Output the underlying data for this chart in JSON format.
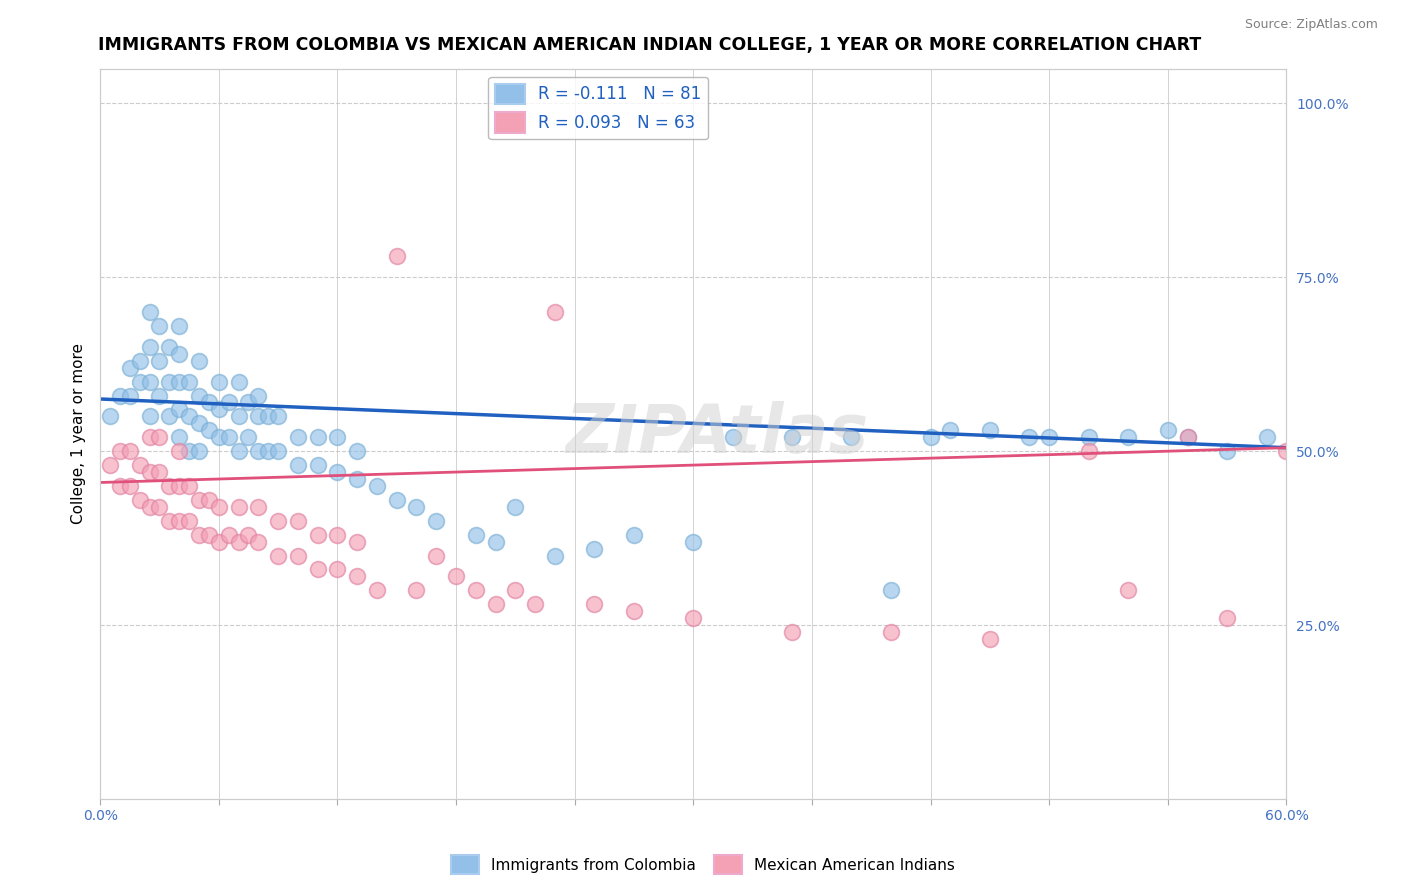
{
  "title": "IMMIGRANTS FROM COLOMBIA VS MEXICAN AMERICAN INDIAN COLLEGE, 1 YEAR OR MORE CORRELATION CHART",
  "source": "Source: ZipAtlas.com",
  "ylabel": "College, 1 year or more",
  "xlim": [
    0.0,
    0.6
  ],
  "ylim": [
    0.0,
    1.05
  ],
  "grid_color": "#cccccc",
  "background_color": "#ffffff",
  "blue_color": "#92C0E8",
  "pink_color": "#F4A0B5",
  "blue_edge_color": "#7aafd4",
  "pink_edge_color": "#e080a0",
  "blue_line_color": "#2060C0",
  "pink_line_color": "#E0507A",
  "R_blue": -0.111,
  "N_blue": 81,
  "R_pink": 0.093,
  "N_pink": 63,
  "legend_label_blue": "Immigrants from Colombia",
  "legend_label_pink": "Mexican American Indians",
  "watermark": "ZIPAtlas",
  "title_fontsize": 12.5,
  "label_fontsize": 11,
  "tick_fontsize": 10,
  "blue_scatter_x": [
    0.005,
    0.01,
    0.015,
    0.015,
    0.02,
    0.02,
    0.025,
    0.025,
    0.025,
    0.025,
    0.03,
    0.03,
    0.03,
    0.035,
    0.035,
    0.035,
    0.04,
    0.04,
    0.04,
    0.04,
    0.04,
    0.045,
    0.045,
    0.045,
    0.05,
    0.05,
    0.05,
    0.05,
    0.055,
    0.055,
    0.06,
    0.06,
    0.06,
    0.065,
    0.065,
    0.07,
    0.07,
    0.07,
    0.075,
    0.075,
    0.08,
    0.08,
    0.08,
    0.085,
    0.085,
    0.09,
    0.09,
    0.1,
    0.1,
    0.11,
    0.11,
    0.12,
    0.12,
    0.13,
    0.13,
    0.14,
    0.15,
    0.16,
    0.17,
    0.19,
    0.2,
    0.21,
    0.23,
    0.25,
    0.27,
    0.3,
    0.32,
    0.35,
    0.38,
    0.4,
    0.42,
    0.43,
    0.45,
    0.47,
    0.48,
    0.5,
    0.52,
    0.54,
    0.55,
    0.57,
    0.59
  ],
  "blue_scatter_y": [
    0.55,
    0.58,
    0.62,
    0.58,
    0.6,
    0.63,
    0.55,
    0.6,
    0.65,
    0.7,
    0.58,
    0.63,
    0.68,
    0.55,
    0.6,
    0.65,
    0.52,
    0.56,
    0.6,
    0.64,
    0.68,
    0.5,
    0.55,
    0.6,
    0.5,
    0.54,
    0.58,
    0.63,
    0.53,
    0.57,
    0.52,
    0.56,
    0.6,
    0.52,
    0.57,
    0.5,
    0.55,
    0.6,
    0.52,
    0.57,
    0.5,
    0.55,
    0.58,
    0.5,
    0.55,
    0.5,
    0.55,
    0.48,
    0.52,
    0.48,
    0.52,
    0.47,
    0.52,
    0.46,
    0.5,
    0.45,
    0.43,
    0.42,
    0.4,
    0.38,
    0.37,
    0.42,
    0.35,
    0.36,
    0.38,
    0.37,
    0.52,
    0.52,
    0.52,
    0.3,
    0.52,
    0.53,
    0.53,
    0.52,
    0.52,
    0.52,
    0.52,
    0.53,
    0.52,
    0.5,
    0.52
  ],
  "pink_scatter_x": [
    0.005,
    0.01,
    0.01,
    0.015,
    0.015,
    0.02,
    0.02,
    0.025,
    0.025,
    0.025,
    0.03,
    0.03,
    0.03,
    0.035,
    0.035,
    0.04,
    0.04,
    0.04,
    0.045,
    0.045,
    0.05,
    0.05,
    0.055,
    0.055,
    0.06,
    0.06,
    0.065,
    0.07,
    0.07,
    0.075,
    0.08,
    0.08,
    0.09,
    0.09,
    0.1,
    0.1,
    0.11,
    0.11,
    0.12,
    0.12,
    0.13,
    0.13,
    0.14,
    0.15,
    0.16,
    0.17,
    0.18,
    0.19,
    0.2,
    0.21,
    0.22,
    0.23,
    0.25,
    0.27,
    0.3,
    0.35,
    0.4,
    0.45,
    0.5,
    0.52,
    0.55,
    0.57,
    0.6
  ],
  "pink_scatter_y": [
    0.48,
    0.45,
    0.5,
    0.45,
    0.5,
    0.43,
    0.48,
    0.42,
    0.47,
    0.52,
    0.42,
    0.47,
    0.52,
    0.4,
    0.45,
    0.4,
    0.45,
    0.5,
    0.4,
    0.45,
    0.38,
    0.43,
    0.38,
    0.43,
    0.37,
    0.42,
    0.38,
    0.37,
    0.42,
    0.38,
    0.37,
    0.42,
    0.35,
    0.4,
    0.35,
    0.4,
    0.33,
    0.38,
    0.33,
    0.38,
    0.32,
    0.37,
    0.3,
    0.78,
    0.3,
    0.35,
    0.32,
    0.3,
    0.28,
    0.3,
    0.28,
    0.7,
    0.28,
    0.27,
    0.26,
    0.24,
    0.24,
    0.23,
    0.5,
    0.3,
    0.52,
    0.26,
    0.5
  ],
  "blue_line_x_start": 0.0,
  "blue_line_x_end": 0.6,
  "blue_line_y_start": 0.575,
  "blue_line_y_end": 0.505,
  "pink_line_x_start": 0.0,
  "pink_line_x_end": 0.6,
  "pink_line_y_start": 0.455,
  "pink_line_y_end": 0.505
}
